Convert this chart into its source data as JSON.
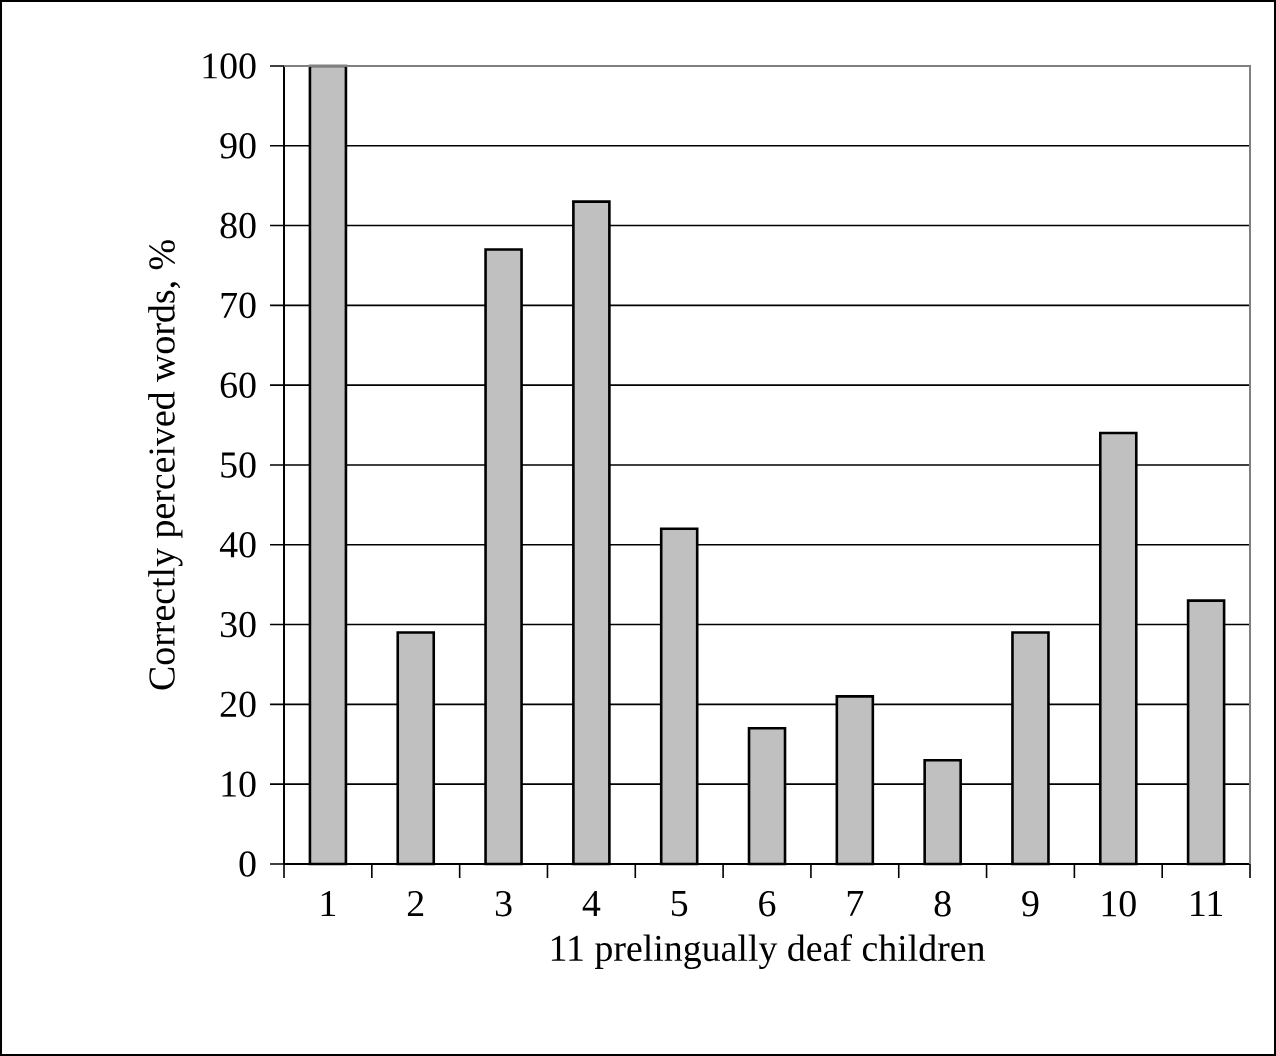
{
  "chart_data": {
    "type": "bar",
    "xlabel": "11 prelingually deaf children",
    "ylabel": "Correctly perceived words, %",
    "categories": [
      "1",
      "2",
      "3",
      "4",
      "5",
      "6",
      "7",
      "8",
      "9",
      "10",
      "11"
    ],
    "values": [
      100,
      29,
      77,
      83,
      42,
      17,
      21,
      13,
      29,
      54,
      33
    ],
    "color": "#c0c0c0",
    "ylim": [
      0,
      100
    ],
    "yticks": [
      0,
      10,
      20,
      30,
      40,
      50,
      60,
      70,
      80,
      90,
      100
    ],
    "grid": "y"
  }
}
